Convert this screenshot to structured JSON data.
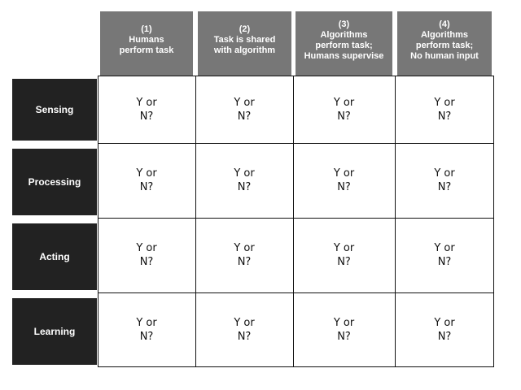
{
  "columns": [
    {
      "label": "(1)\nHumans\nperform task"
    },
    {
      "label": "(2)\nTask is shared\nwith algorithm"
    },
    {
      "label": "(3)\nAlgorithms\nperform task;\nHumans supervise"
    },
    {
      "label": "(4)\nAlgorithms\nperform task;\nNo human input"
    }
  ],
  "rows": [
    {
      "label": "Sensing",
      "cells": [
        "Y or\nN?",
        "Y or\nN?",
        "Y or\nN?",
        "Y or\nN?"
      ]
    },
    {
      "label": "Processing",
      "cells": [
        "Y or\nN?",
        "Y or\nN?",
        "Y or\nN?",
        "Y or\nN?"
      ]
    },
    {
      "label": "Acting",
      "cells": [
        "Y or\nN?",
        "Y or\nN?",
        "Y or\nN?",
        "Y or\nN?"
      ]
    },
    {
      "label": "Learning",
      "cells": [
        "Y or\nN?",
        "Y or\nN?",
        "Y or\nN?",
        "Y or\nN?"
      ]
    }
  ],
  "colors": {
    "header_bg": "#777777",
    "row_label_bg": "#222222",
    "grid_line": "#111111"
  }
}
